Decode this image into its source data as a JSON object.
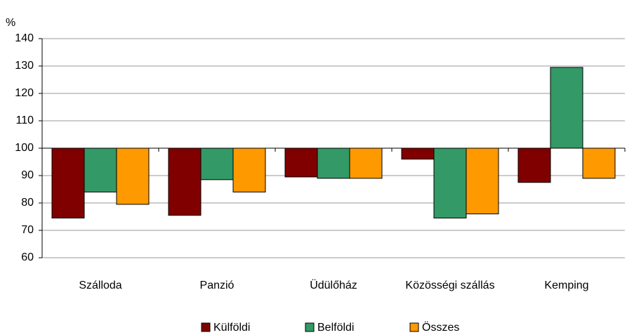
{
  "chart_data": {
    "type": "bar",
    "y_unit": "%",
    "categories": [
      "Szálloda",
      "Panzió",
      "Üdülőház",
      "Közösségi szállás",
      "Kemping"
    ],
    "series": [
      {
        "name": "Külföldi",
        "color": "#800000",
        "values": [
          74.5,
          75.5,
          89.5,
          96,
          87.5
        ]
      },
      {
        "name": "Belföldi",
        "color": "#339966",
        "values": [
          84,
          88.5,
          89,
          74.5,
          129.5
        ]
      },
      {
        "name": "Összes",
        "color": "#ff9900",
        "values": [
          79.5,
          84,
          89,
          76,
          89
        ]
      }
    ],
    "ylim": [
      60,
      140
    ],
    "yticks": [
      60,
      70,
      80,
      90,
      100,
      110,
      120,
      130,
      140
    ],
    "bar_origin": 100,
    "grid": true,
    "legend": "bottom"
  }
}
